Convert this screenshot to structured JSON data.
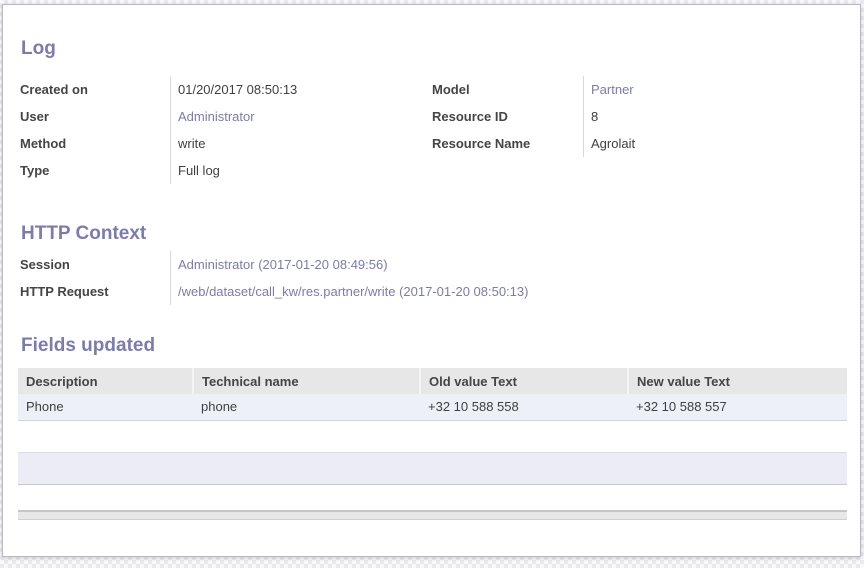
{
  "colors": {
    "accent": "#7c7bad",
    "link": "#7c7bad",
    "table_header_bg": "#e7e7e7",
    "table_row_bg": "#eef0f8"
  },
  "log": {
    "title": "Log",
    "left_fields": [
      {
        "label": "Created on",
        "value": "01/20/2017 08:50:13"
      },
      {
        "label": "User",
        "value": "Administrator"
      },
      {
        "label": "Method",
        "value": "write"
      },
      {
        "label": "Type",
        "value": "Full log"
      }
    ],
    "right_fields": [
      {
        "label": "Model",
        "value": "Partner"
      },
      {
        "label": "Resource ID",
        "value": "8"
      },
      {
        "label": "Resource Name",
        "value": "Agrolait"
      }
    ]
  },
  "http_context": {
    "title": "HTTP Context",
    "fields": [
      {
        "label": "Session",
        "value": "Administrator (2017-01-20 08:49:56)"
      },
      {
        "label": "HTTP Request",
        "value": "/web/dataset/call_kw/res.partner/write (2017-01-20 08:50:13)"
      }
    ]
  },
  "fields_updated": {
    "title": "Fields updated",
    "table": {
      "columns": [
        "Description",
        "Technical name",
        "Old value Text",
        "New value Text"
      ],
      "rows": [
        [
          "Phone",
          "phone",
          "+32 10 588 558",
          "+32 10 588 557"
        ]
      ]
    }
  }
}
